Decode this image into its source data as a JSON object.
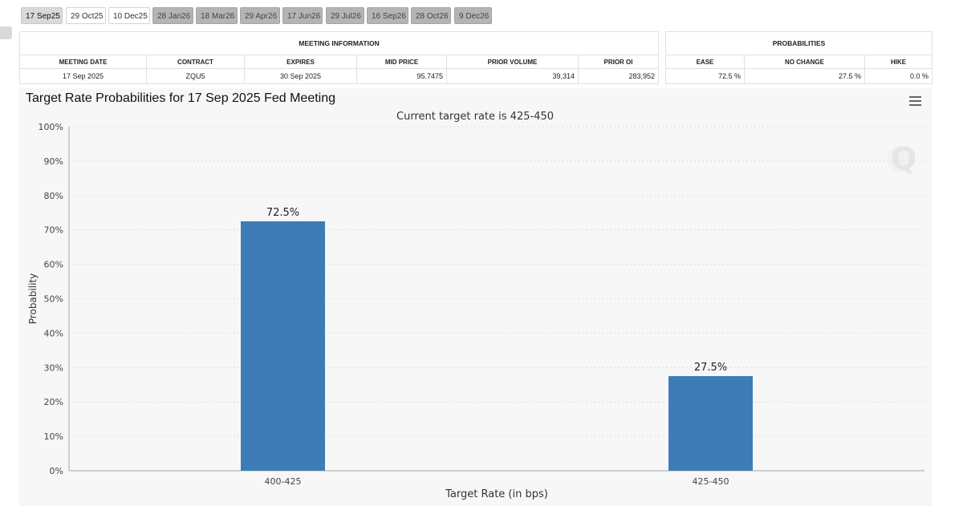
{
  "tabs": [
    {
      "label": "17 Sep25",
      "style": "sel"
    },
    {
      "label": "29 Oct25",
      "style": "light"
    },
    {
      "label": "10 Dec25",
      "style": "light"
    },
    {
      "label": "28 Jan26",
      "style": "dark"
    },
    {
      "label": "18 Mar26",
      "style": "dark"
    },
    {
      "label": "29 Apr26",
      "style": "dark"
    },
    {
      "label": "17 Jun26",
      "style": "dark"
    },
    {
      "label": "29 Jul26",
      "style": "dark"
    },
    {
      "label": "16 Sep26",
      "style": "dark"
    },
    {
      "label": "28 Oct26",
      "style": "dark"
    },
    {
      "label": "9 Dec26",
      "style": "dark"
    }
  ],
  "meeting_info": {
    "title": "MEETING INFORMATION",
    "headers": {
      "meeting_date": "MEETING DATE",
      "contract": "CONTRACT",
      "expires": "EXPIRES",
      "mid_price": "MID PRICE",
      "prior_volume": "PRIOR VOLUME",
      "prior_oi": "PRIOR OI"
    },
    "values": {
      "meeting_date": "17 Sep 2025",
      "contract": "ZQU5",
      "expires": "30 Sep 2025",
      "mid_price": "95.7475",
      "prior_volume": "39,314",
      "prior_oi": "283,952"
    }
  },
  "probabilities": {
    "title": "PROBABILITIES",
    "headers": {
      "ease": "EASE",
      "no_change": "NO CHANGE",
      "hike": "HIKE"
    },
    "values": {
      "ease": "72.5 %",
      "no_change": "27.5 %",
      "hike": "0.0 %"
    }
  },
  "colors": {
    "bar": "#3e7cb8",
    "grid": "#c8c8c8",
    "panel": "#f7f7f7"
  },
  "chart_data": {
    "type": "bar",
    "title": "Target Rate Probabilities for 17 Sep 2025 Fed Meeting",
    "subtitle": "Current target rate is 425-450",
    "categories": [
      "400-425",
      "425-450"
    ],
    "values": [
      72.5,
      27.5
    ],
    "data_labels": [
      "72.5%",
      "27.5%"
    ],
    "xlabel": "Target Rate (in bps)",
    "ylabel": "Probability",
    "ylim": [
      0,
      100
    ],
    "yticks": [
      "0%",
      "10%",
      "20%",
      "30%",
      "40%",
      "50%",
      "60%",
      "70%",
      "80%",
      "90%",
      "100%"
    ],
    "grid": true
  }
}
